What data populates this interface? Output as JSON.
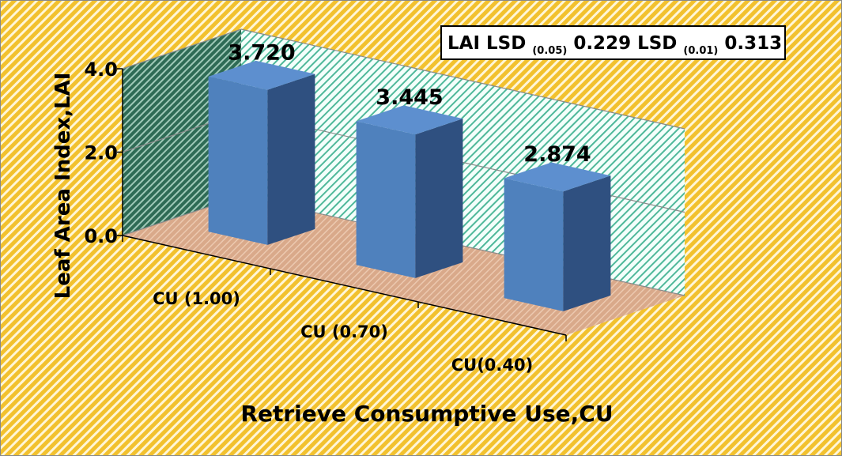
{
  "chart_data": {
    "type": "bar3d",
    "y_axis_label": "Leaf Area Index,LAI",
    "x_axis_label": "Retrieve Consumptive Use,CU",
    "annotation": [
      "LAI LSD ",
      "(0.05)",
      " 0.229 LSD ",
      "(0.01)",
      " 0.313"
    ],
    "categories": [
      "CU (1.00)",
      "CU (0.70)",
      "CU(0.40)"
    ],
    "values": [
      3.72,
      3.445,
      2.874
    ],
    "value_labels": [
      "3.720",
      "3.445",
      "2.874"
    ],
    "color": "#4f81bd",
    "ylim": [
      0,
      4
    ],
    "yticks": [
      {
        "value": 0,
        "label": "0.0"
      },
      {
        "value": 2,
        "label": "2.0"
      },
      {
        "value": 4,
        "label": "4.0"
      }
    ],
    "grid": true
  }
}
